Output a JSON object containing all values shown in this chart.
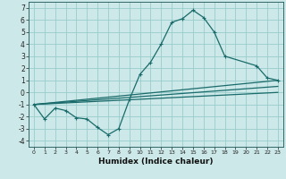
{
  "bg_color": "#cce8e8",
  "grid_color": "#99cccc",
  "line_color": "#1a6b6b",
  "xlabel": "Humidex (Indice chaleur)",
  "xlim": [
    -0.5,
    23.5
  ],
  "ylim": [
    -4.5,
    7.5
  ],
  "yticks": [
    -4,
    -3,
    -2,
    -1,
    0,
    1,
    2,
    3,
    4,
    5,
    6,
    7
  ],
  "xticks": [
    0,
    1,
    2,
    3,
    4,
    5,
    6,
    7,
    8,
    9,
    10,
    11,
    12,
    13,
    14,
    15,
    16,
    17,
    18,
    19,
    20,
    21,
    22,
    23
  ],
  "line1_x": [
    0,
    1,
    2,
    3,
    4,
    5,
    6,
    7,
    8,
    9,
    10,
    11,
    12,
    13,
    14,
    15,
    16,
    17,
    18,
    21,
    22,
    23
  ],
  "line1_y": [
    -1.0,
    -2.2,
    -1.3,
    -1.5,
    -2.1,
    -2.2,
    -2.9,
    -3.5,
    -3.0,
    -0.6,
    1.5,
    2.5,
    4.0,
    5.8,
    6.1,
    6.8,
    6.2,
    5.0,
    3.0,
    2.2,
    1.2,
    1.0
  ],
  "line2_x": [
    0,
    23
  ],
  "line2_y": [
    -1.0,
    1.0
  ],
  "line3_x": [
    0,
    23
  ],
  "line3_y": [
    -1.0,
    0.5
  ],
  "line4_x": [
    0,
    23
  ],
  "line4_y": [
    -1.0,
    0.0
  ]
}
